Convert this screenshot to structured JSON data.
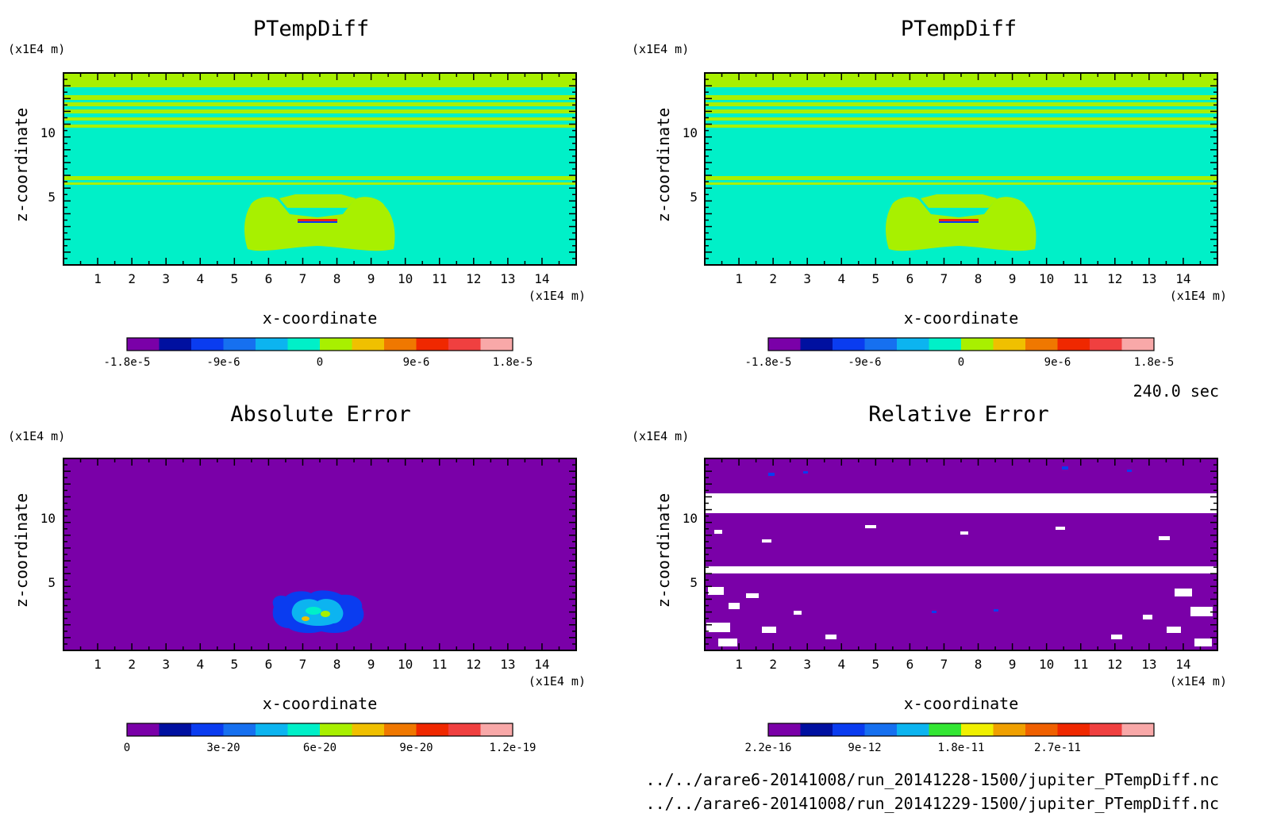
{
  "time_label": "240.0 sec",
  "footer": {
    "file1": "../../arare6-20141008/run_20141228-1500/jupiter_PTempDiff.nc",
    "file2": "../../arare6-20141008/run_20141229-1500/jupiter_PTempDiff.nc"
  },
  "chart_data": [
    {
      "type": "heatmap",
      "title": "PTempDiff",
      "xlabel": "x-coordinate",
      "ylabel": "z-coordinate",
      "x_unit": "(x1E4 m)",
      "y_unit": "(x1E4 m)",
      "xlim": [
        0,
        15
      ],
      "ylim": [
        0,
        15
      ],
      "xticks": [
        "1",
        "2",
        "3",
        "4",
        "5",
        "6",
        "7",
        "8",
        "9",
        "10",
        "11",
        "12",
        "13",
        "14"
      ],
      "yticks": [
        "5",
        "10"
      ],
      "colorbar": {
        "colors": [
          "#7a00a8",
          "#0010a0",
          "#0a3cf0",
          "#1670f0",
          "#0cb4f0",
          "#00f0c8",
          "#a8f000",
          "#f0c000",
          "#f07800",
          "#f02800",
          "#f04040",
          "#f8a8a8"
        ],
        "tick_labels": [
          "-1.8e-5",
          "-9e-6",
          "0",
          "9e-6",
          "1.8e-5"
        ]
      },
      "features": [
        {
          "kind": "background",
          "color": "#00f0c8"
        },
        {
          "kind": "horizontal_bands",
          "color": "#a8f000",
          "z_ranges": [
            [
              13.8,
              14.3
            ],
            [
              12.9,
              13.2
            ],
            [
              12.3,
              12.55
            ],
            [
              11.7,
              11.9
            ],
            [
              11.15,
              11.35
            ],
            [
              10.75,
              10.9
            ],
            [
              6.6,
              6.8
            ],
            [
              6.1,
              6.3
            ],
            [
              5.5,
              5.7
            ]
          ]
        },
        {
          "kind": "blob",
          "color": "#a8f000",
          "x_range": [
            5.5,
            9.7
          ],
          "z_range": [
            0.9,
            5.4
          ]
        },
        {
          "kind": "thin_feature",
          "colors": [
            "#f02800",
            "#0a3cf0"
          ],
          "x": 7.5,
          "z": 3.4
        }
      ]
    },
    {
      "type": "heatmap",
      "title": "PTempDiff",
      "xlabel": "x-coordinate",
      "ylabel": "z-coordinate",
      "x_unit": "(x1E4 m)",
      "y_unit": "(x1E4 m)",
      "xlim": [
        0,
        15
      ],
      "ylim": [
        0,
        15
      ],
      "xticks": [
        "1",
        "2",
        "3",
        "4",
        "5",
        "6",
        "7",
        "8",
        "9",
        "10",
        "11",
        "12",
        "13",
        "14"
      ],
      "yticks": [
        "5",
        "10"
      ],
      "colorbar": {
        "colors": [
          "#7a00a8",
          "#0010a0",
          "#0a3cf0",
          "#1670f0",
          "#0cb4f0",
          "#00f0c8",
          "#a8f000",
          "#f0c000",
          "#f07800",
          "#f02800",
          "#f04040",
          "#f8a8a8"
        ],
        "tick_labels": [
          "-1.8e-5",
          "-9e-6",
          "0",
          "9e-6",
          "1.8e-5"
        ]
      },
      "features": [
        {
          "kind": "background",
          "color": "#00f0c8"
        },
        {
          "kind": "horizontal_bands",
          "color": "#a8f000",
          "z_ranges": [
            [
              13.8,
              14.3
            ],
            [
              12.9,
              13.2
            ],
            [
              12.3,
              12.55
            ],
            [
              11.7,
              11.9
            ],
            [
              11.15,
              11.35
            ],
            [
              10.75,
              10.9
            ],
            [
              6.6,
              6.8
            ],
            [
              6.1,
              6.3
            ],
            [
              5.5,
              5.7
            ]
          ]
        },
        {
          "kind": "blob",
          "color": "#a8f000",
          "x_range": [
            5.5,
            9.7
          ],
          "z_range": [
            0.9,
            5.4
          ]
        },
        {
          "kind": "thin_feature",
          "colors": [
            "#f02800",
            "#0a3cf0"
          ],
          "x": 7.5,
          "z": 3.4
        }
      ]
    },
    {
      "type": "heatmap",
      "title": "Absolute Error",
      "xlabel": "x-coordinate",
      "ylabel": "z-coordinate",
      "x_unit": "(x1E4 m)",
      "y_unit": "(x1E4 m)",
      "xlim": [
        0,
        15
      ],
      "ylim": [
        0,
        15
      ],
      "xticks": [
        "1",
        "2",
        "3",
        "4",
        "5",
        "6",
        "7",
        "8",
        "9",
        "10",
        "11",
        "12",
        "13",
        "14"
      ],
      "yticks": [
        "5",
        "10"
      ],
      "colorbar": {
        "colors": [
          "#7a00a8",
          "#0010a0",
          "#0a3cf0",
          "#1670f0",
          "#0cb4f0",
          "#00f0c8",
          "#a8f000",
          "#f0c000",
          "#f07800",
          "#f02800",
          "#f04040",
          "#f8a8a8"
        ],
        "tick_labels": [
          "0",
          "3e-20",
          "6e-20",
          "9e-20",
          "1.2e-19"
        ]
      },
      "features": [
        {
          "kind": "background",
          "color": "#7a00a8"
        },
        {
          "kind": "blob",
          "color": "#0a3cf0",
          "x_range": [
            6.0,
            9.2
          ],
          "z_range": [
            1.6,
            4.7
          ]
        },
        {
          "kind": "blob",
          "color": "#0cb4f0",
          "x_range": [
            6.8,
            8.3
          ],
          "z_range": [
            2.3,
            4.0
          ]
        },
        {
          "kind": "blob",
          "color": "#a8f000",
          "x_range": [
            7.2,
            7.8
          ],
          "z_range": [
            2.8,
            3.6
          ]
        }
      ]
    },
    {
      "type": "heatmap",
      "title": "Relative Error",
      "xlabel": "x-coordinate",
      "ylabel": "z-coordinate",
      "x_unit": "(x1E4 m)",
      "y_unit": "(x1E4 m)",
      "xlim": [
        0,
        15
      ],
      "ylim": [
        0,
        15
      ],
      "xticks": [
        "1",
        "2",
        "3",
        "4",
        "5",
        "6",
        "7",
        "8",
        "9",
        "10",
        "11",
        "12",
        "13",
        "14"
      ],
      "yticks": [
        "5",
        "10"
      ],
      "colorbar": {
        "colors": [
          "#7a00a8",
          "#0010a0",
          "#0a3cf0",
          "#1670f0",
          "#0cb4f0",
          "#33e633",
          "#f0f000",
          "#f0a000",
          "#f06000",
          "#f02800",
          "#f04040",
          "#f8a8a8"
        ],
        "tick_labels": [
          "2.2e-16",
          "9e-12",
          "1.8e-11",
          "2.7e-11"
        ]
      },
      "features": [
        {
          "kind": "background",
          "color": "#7a00a8"
        },
        {
          "kind": "horizontal_bands",
          "color": "#ffffff",
          "z_ranges": [
            [
              10.8,
              12.2
            ],
            [
              6.3,
              6.7
            ]
          ]
        },
        {
          "kind": "scatter_patches",
          "color": "#ffffff",
          "z_range": [
            0,
            6.3
          ]
        },
        {
          "kind": "dots",
          "color": "#0a3cf0",
          "note": "isolated small spots"
        }
      ]
    }
  ]
}
